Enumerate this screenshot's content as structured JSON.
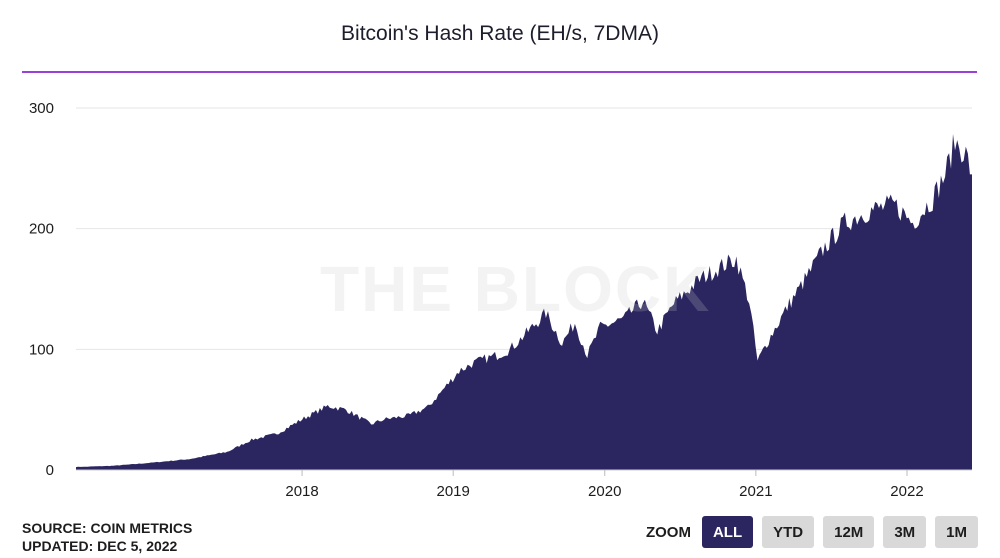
{
  "watermark": "THE BLOCK",
  "footer": {
    "source": "SOURCE: COIN METRICS",
    "updated": "UPDATED: DEC 5, 2022"
  },
  "zoom": {
    "label": "ZOOM",
    "buttons": [
      "ALL",
      "YTD",
      "12M",
      "3M",
      "1M"
    ],
    "active": "ALL"
  },
  "colors": {
    "fill": "#2b2660",
    "accent_rule": "#9b3fd9",
    "grid": "#e6e6e6"
  },
  "chart_data": {
    "type": "area",
    "title": "Bitcoin's Hash Rate (EH/s, 7DMA)",
    "xlabel": "",
    "ylabel": "",
    "ylim": [
      0,
      300
    ],
    "yticks": [
      0,
      100,
      200,
      300
    ],
    "xticks": [
      "2018",
      "2019",
      "2020",
      "2021",
      "2022"
    ],
    "xlim": [
      "2017-01-01",
      "2022-12-05"
    ],
    "grid": true,
    "series": [
      {
        "values": [
          [
            "2017-01-01",
            2.5
          ],
          [
            "2017-04-01",
            3.5
          ],
          [
            "2017-07-01",
            6
          ],
          [
            "2017-10-01",
            9
          ],
          [
            "2018-01-01",
            15
          ],
          [
            "2018-03-01",
            25
          ],
          [
            "2018-05-01",
            30
          ],
          [
            "2018-07-01",
            42
          ],
          [
            "2018-09-01",
            53
          ],
          [
            "2018-10-15",
            50
          ],
          [
            "2018-12-15",
            38
          ],
          [
            "2019-01-15",
            42
          ],
          [
            "2019-03-15",
            45
          ],
          [
            "2019-05-01",
            52
          ],
          [
            "2019-06-15",
            70
          ],
          [
            "2019-07-15",
            82
          ],
          [
            "2019-08-15",
            88
          ],
          [
            "2019-09-15",
            92
          ],
          [
            "2019-10-15",
            95
          ],
          [
            "2019-11-15",
            100
          ],
          [
            "2019-12-15",
            110
          ],
          [
            "2020-02-10",
            130
          ],
          [
            "2020-03-20",
            105
          ],
          [
            "2020-04-20",
            122
          ],
          [
            "2020-05-20",
            95
          ],
          [
            "2020-06-20",
            118
          ],
          [
            "2020-08-15",
            125
          ],
          [
            "2020-10-01",
            140
          ],
          [
            "2020-11-05",
            115
          ],
          [
            "2020-12-15",
            138
          ],
          [
            "2021-02-15",
            158
          ],
          [
            "2021-04-15",
            170
          ],
          [
            "2021-05-15",
            175
          ],
          [
            "2021-06-15",
            140
          ],
          [
            "2021-07-05",
            90
          ],
          [
            "2021-08-01",
            108
          ],
          [
            "2021-09-15",
            135
          ],
          [
            "2021-11-01",
            160
          ],
          [
            "2021-12-15",
            185
          ],
          [
            "2022-02-01",
            205
          ],
          [
            "2022-04-01",
            215
          ],
          [
            "2022-06-01",
            220
          ],
          [
            "2022-07-15",
            205
          ],
          [
            "2022-09-01",
            225
          ],
          [
            "2022-10-01",
            245
          ],
          [
            "2022-10-25",
            272
          ],
          [
            "2022-11-20",
            262
          ],
          [
            "2022-12-05",
            245
          ]
        ]
      }
    ]
  }
}
